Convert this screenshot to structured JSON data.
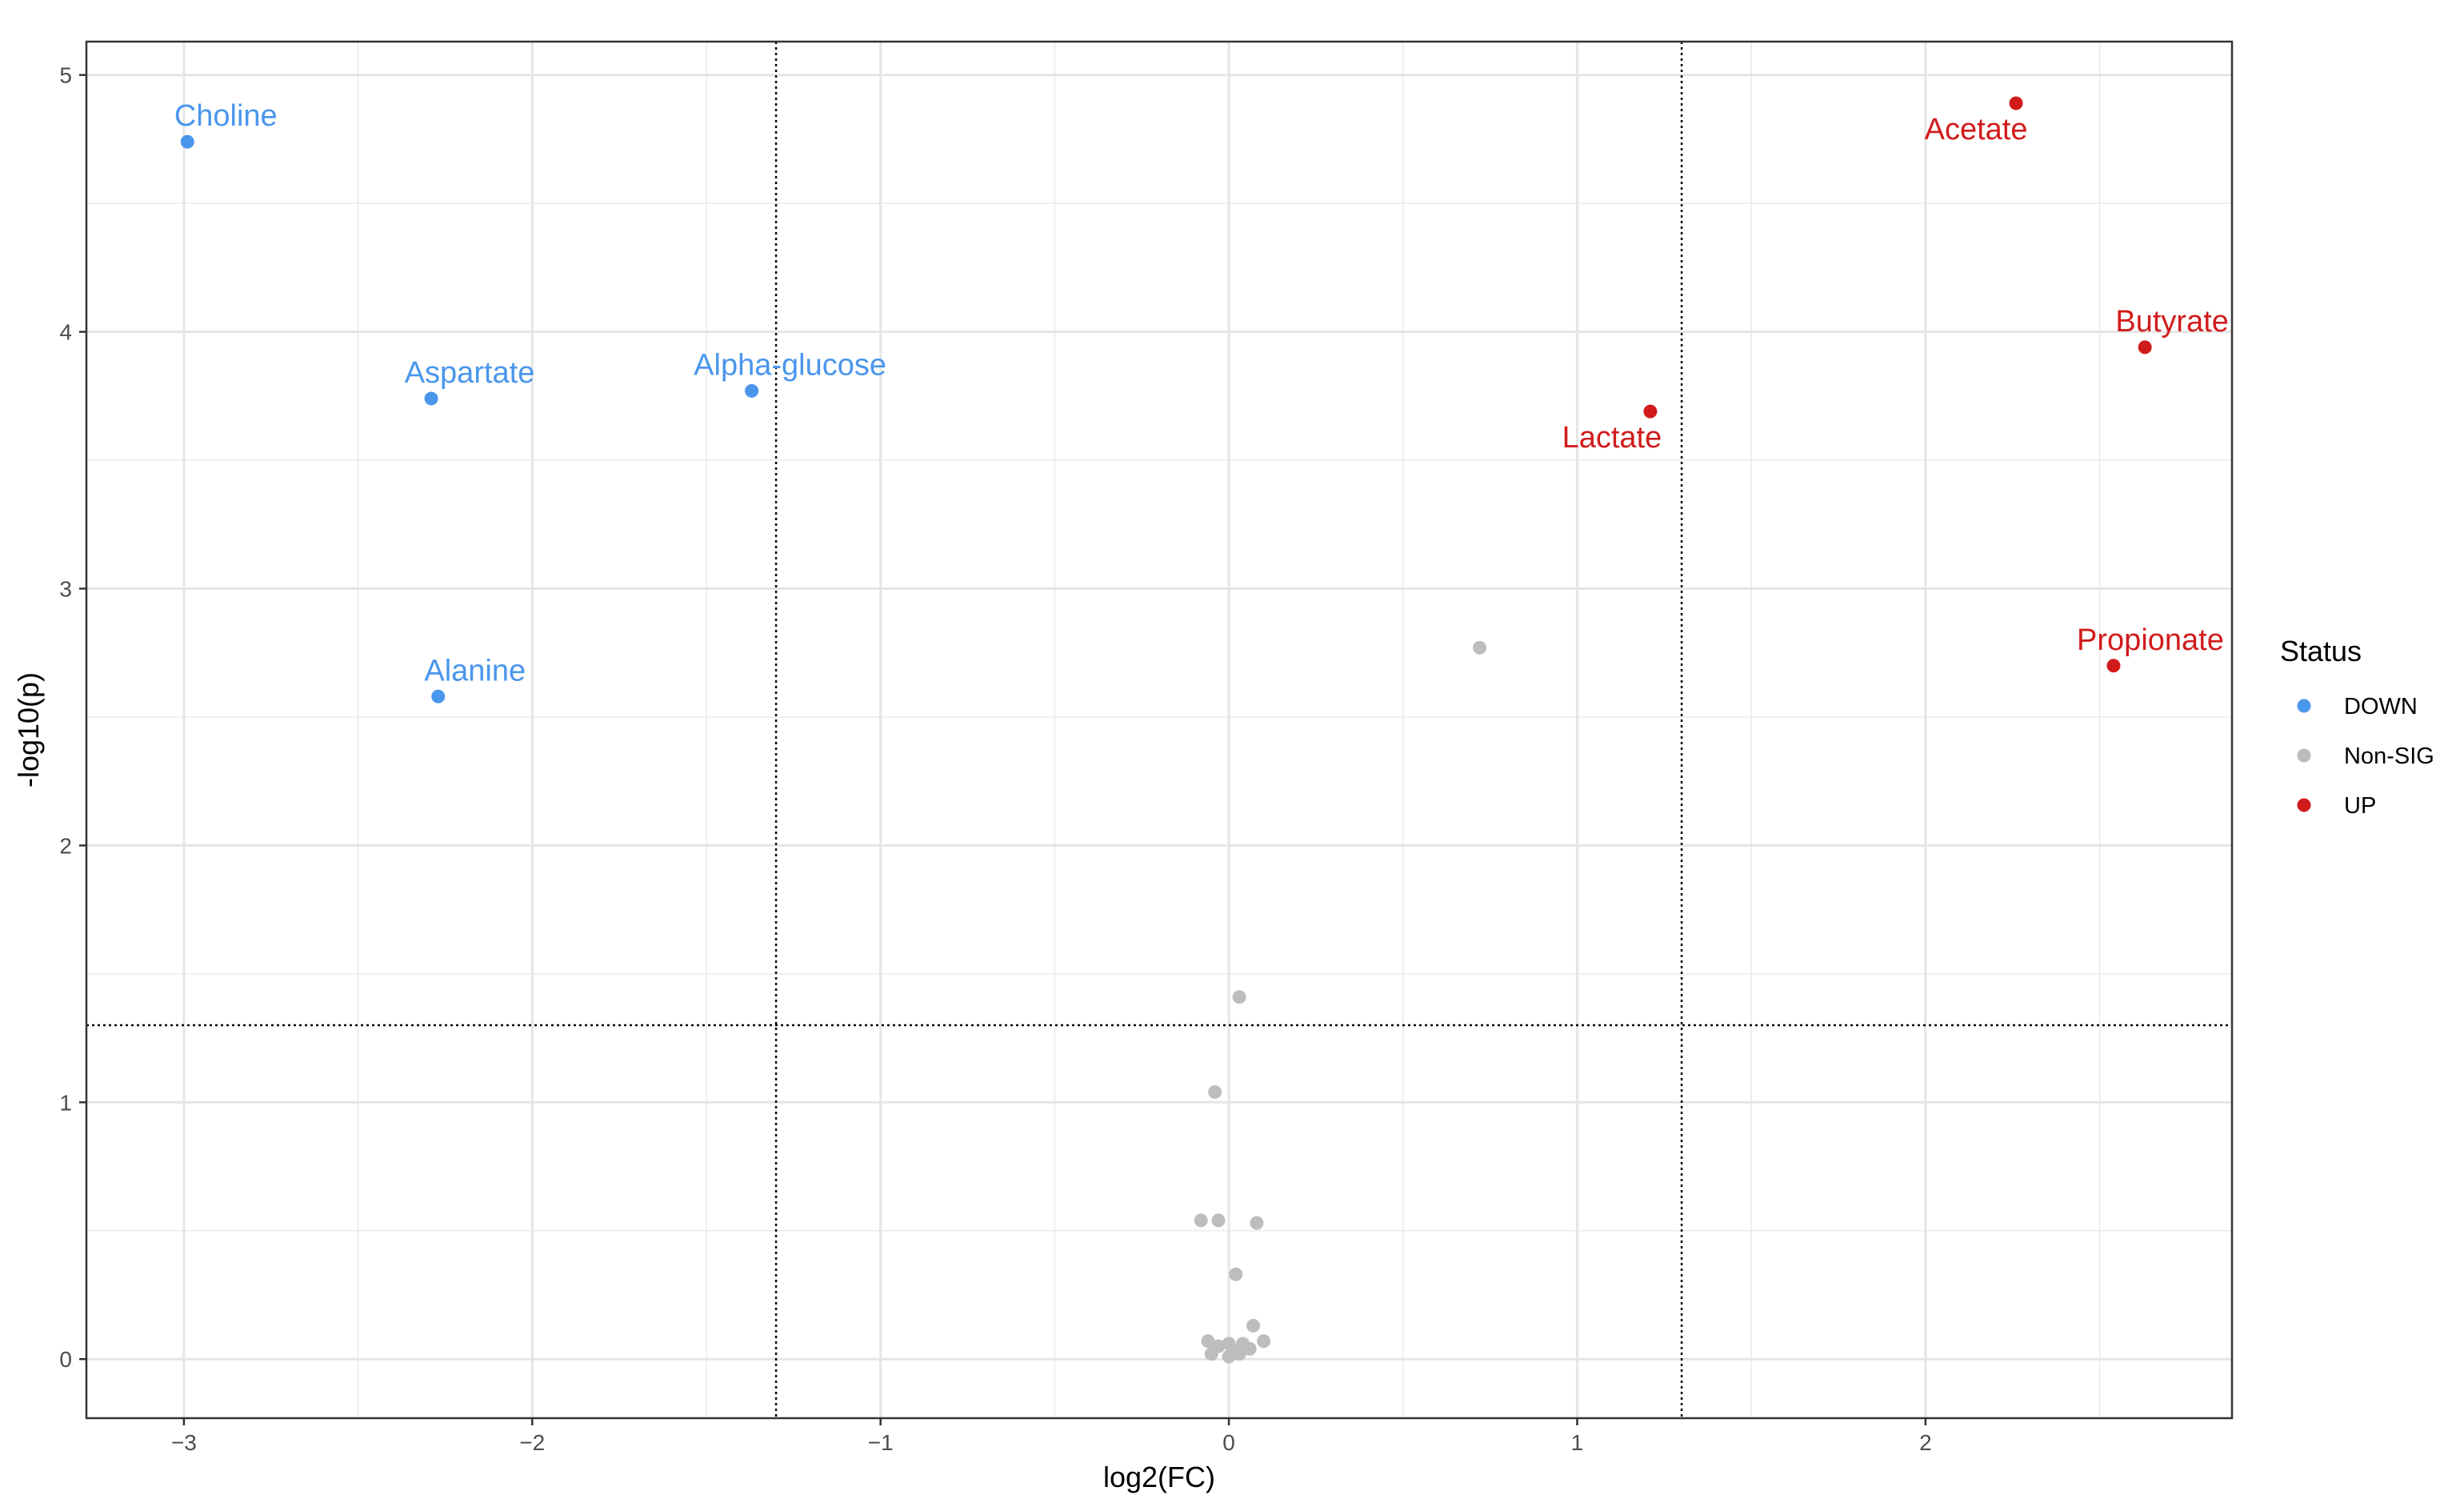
{
  "chart_data": {
    "type": "scatter",
    "title": "",
    "xlabel": "log2(FC)",
    "ylabel": "-log10(p)",
    "xlim": [
      -3.28,
      2.88
    ],
    "ylim": [
      -0.23,
      5.13
    ],
    "x_ticks": [
      -3,
      -2,
      -1,
      0,
      1,
      2
    ],
    "x_tick_labels": [
      "−3",
      "−2",
      "−1",
      "0",
      "1",
      "2"
    ],
    "y_ticks": [
      0,
      1,
      2,
      3,
      4,
      5
    ],
    "y_tick_labels": [
      "0",
      "1",
      "2",
      "3",
      "4",
      "5"
    ],
    "grid": true,
    "thresholds": {
      "x": [
        -1.3,
        1.3
      ],
      "y": [
        1.3
      ],
      "style": "dotted"
    },
    "legend": {
      "title": "Status",
      "position": "right"
    },
    "colors": {
      "DOWN": "#4a96ec",
      "Non-SIG": "#bdbdbd",
      "UP": "#d11b1b"
    },
    "series": [
      {
        "name": "DOWN",
        "points": [
          {
            "x": -2.99,
            "y": 4.74,
            "label": "Choline"
          },
          {
            "x": -2.29,
            "y": 3.74,
            "label": "Aspartate"
          },
          {
            "x": -1.37,
            "y": 3.77,
            "label": "Alpha-glucose"
          },
          {
            "x": -2.27,
            "y": 2.58,
            "label": "Alanine"
          }
        ]
      },
      {
        "name": "Non-SIG",
        "points": [
          {
            "x": 0.72,
            "y": 2.77
          },
          {
            "x": 0.03,
            "y": 1.41
          },
          {
            "x": -0.04,
            "y": 1.04
          },
          {
            "x": -0.08,
            "y": 0.54
          },
          {
            "x": -0.03,
            "y": 0.54
          },
          {
            "x": 0.08,
            "y": 0.53
          },
          {
            "x": 0.02,
            "y": 0.33
          },
          {
            "x": 0.07,
            "y": 0.13
          },
          {
            "x": -0.06,
            "y": 0.07
          },
          {
            "x": 0.1,
            "y": 0.07
          },
          {
            "x": 0.0,
            "y": 0.06
          },
          {
            "x": 0.04,
            "y": 0.06
          },
          {
            "x": -0.03,
            "y": 0.05
          },
          {
            "x": 0.06,
            "y": 0.04
          },
          {
            "x": 0.02,
            "y": 0.03
          },
          {
            "x": -0.05,
            "y": 0.02
          },
          {
            "x": 0.0,
            "y": 0.01
          },
          {
            "x": 0.03,
            "y": 0.02
          }
        ]
      },
      {
        "name": "UP",
        "points": [
          {
            "x": 2.26,
            "y": 4.89,
            "label": "Acetate"
          },
          {
            "x": 2.63,
            "y": 3.94,
            "label": "Butyrate"
          },
          {
            "x": 1.21,
            "y": 3.69,
            "label": "Lactate"
          },
          {
            "x": 2.54,
            "y": 2.7,
            "label": "Propionate"
          }
        ]
      }
    ]
  }
}
